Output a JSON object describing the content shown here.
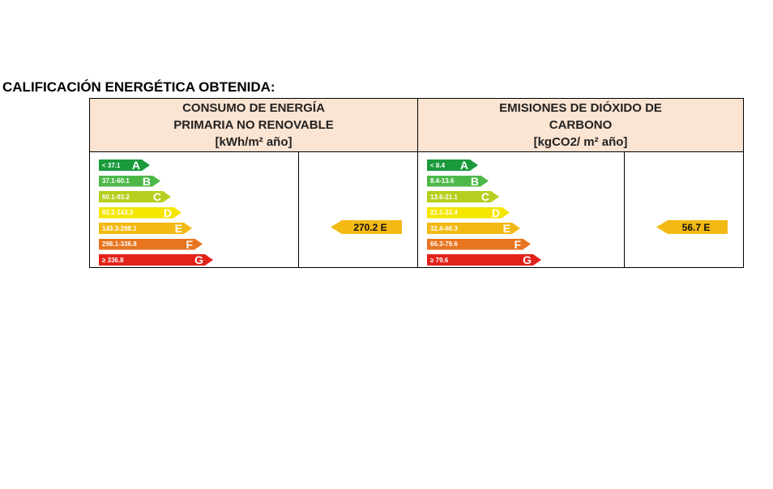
{
  "title": "CALIFICACIÓN ENERGÉTICA OBTENIDA:",
  "panels": [
    {
      "header": [
        "CONSUMO DE ENERGÍA",
        "PRIMARIA NO RENOVABLE",
        "[kWh/m² año]"
      ],
      "scale": [
        {
          "range": "< 37.1",
          "letter": "A"
        },
        {
          "range": "37.1-60.1",
          "letter": "B"
        },
        {
          "range": "60.1-93.2",
          "letter": "C"
        },
        {
          "range": "93.2-143.3",
          "letter": "D"
        },
        {
          "range": "143.3-298.1",
          "letter": "E"
        },
        {
          "range": "298.1-336.8",
          "letter": "F"
        },
        {
          "range": "≥ 336.8",
          "letter": "G"
        }
      ],
      "result": "270.2 E"
    },
    {
      "header": [
        "EMISIONES DE DIÓXIDO DE",
        "CARBONO",
        "[kgCO2/ m² año]"
      ],
      "scale": [
        {
          "range": "< 8.4",
          "letter": "A"
        },
        {
          "range": "8.4-13.6",
          "letter": "B"
        },
        {
          "range": "13.6-21.1",
          "letter": "C"
        },
        {
          "range": "21.1-32.4",
          "letter": "D"
        },
        {
          "range": "32.4-66.3",
          "letter": "E"
        },
        {
          "range": "66.3-79.6",
          "letter": "F"
        },
        {
          "range": "≥ 79.6",
          "letter": "G"
        }
      ],
      "result": "56.7 E"
    }
  ]
}
